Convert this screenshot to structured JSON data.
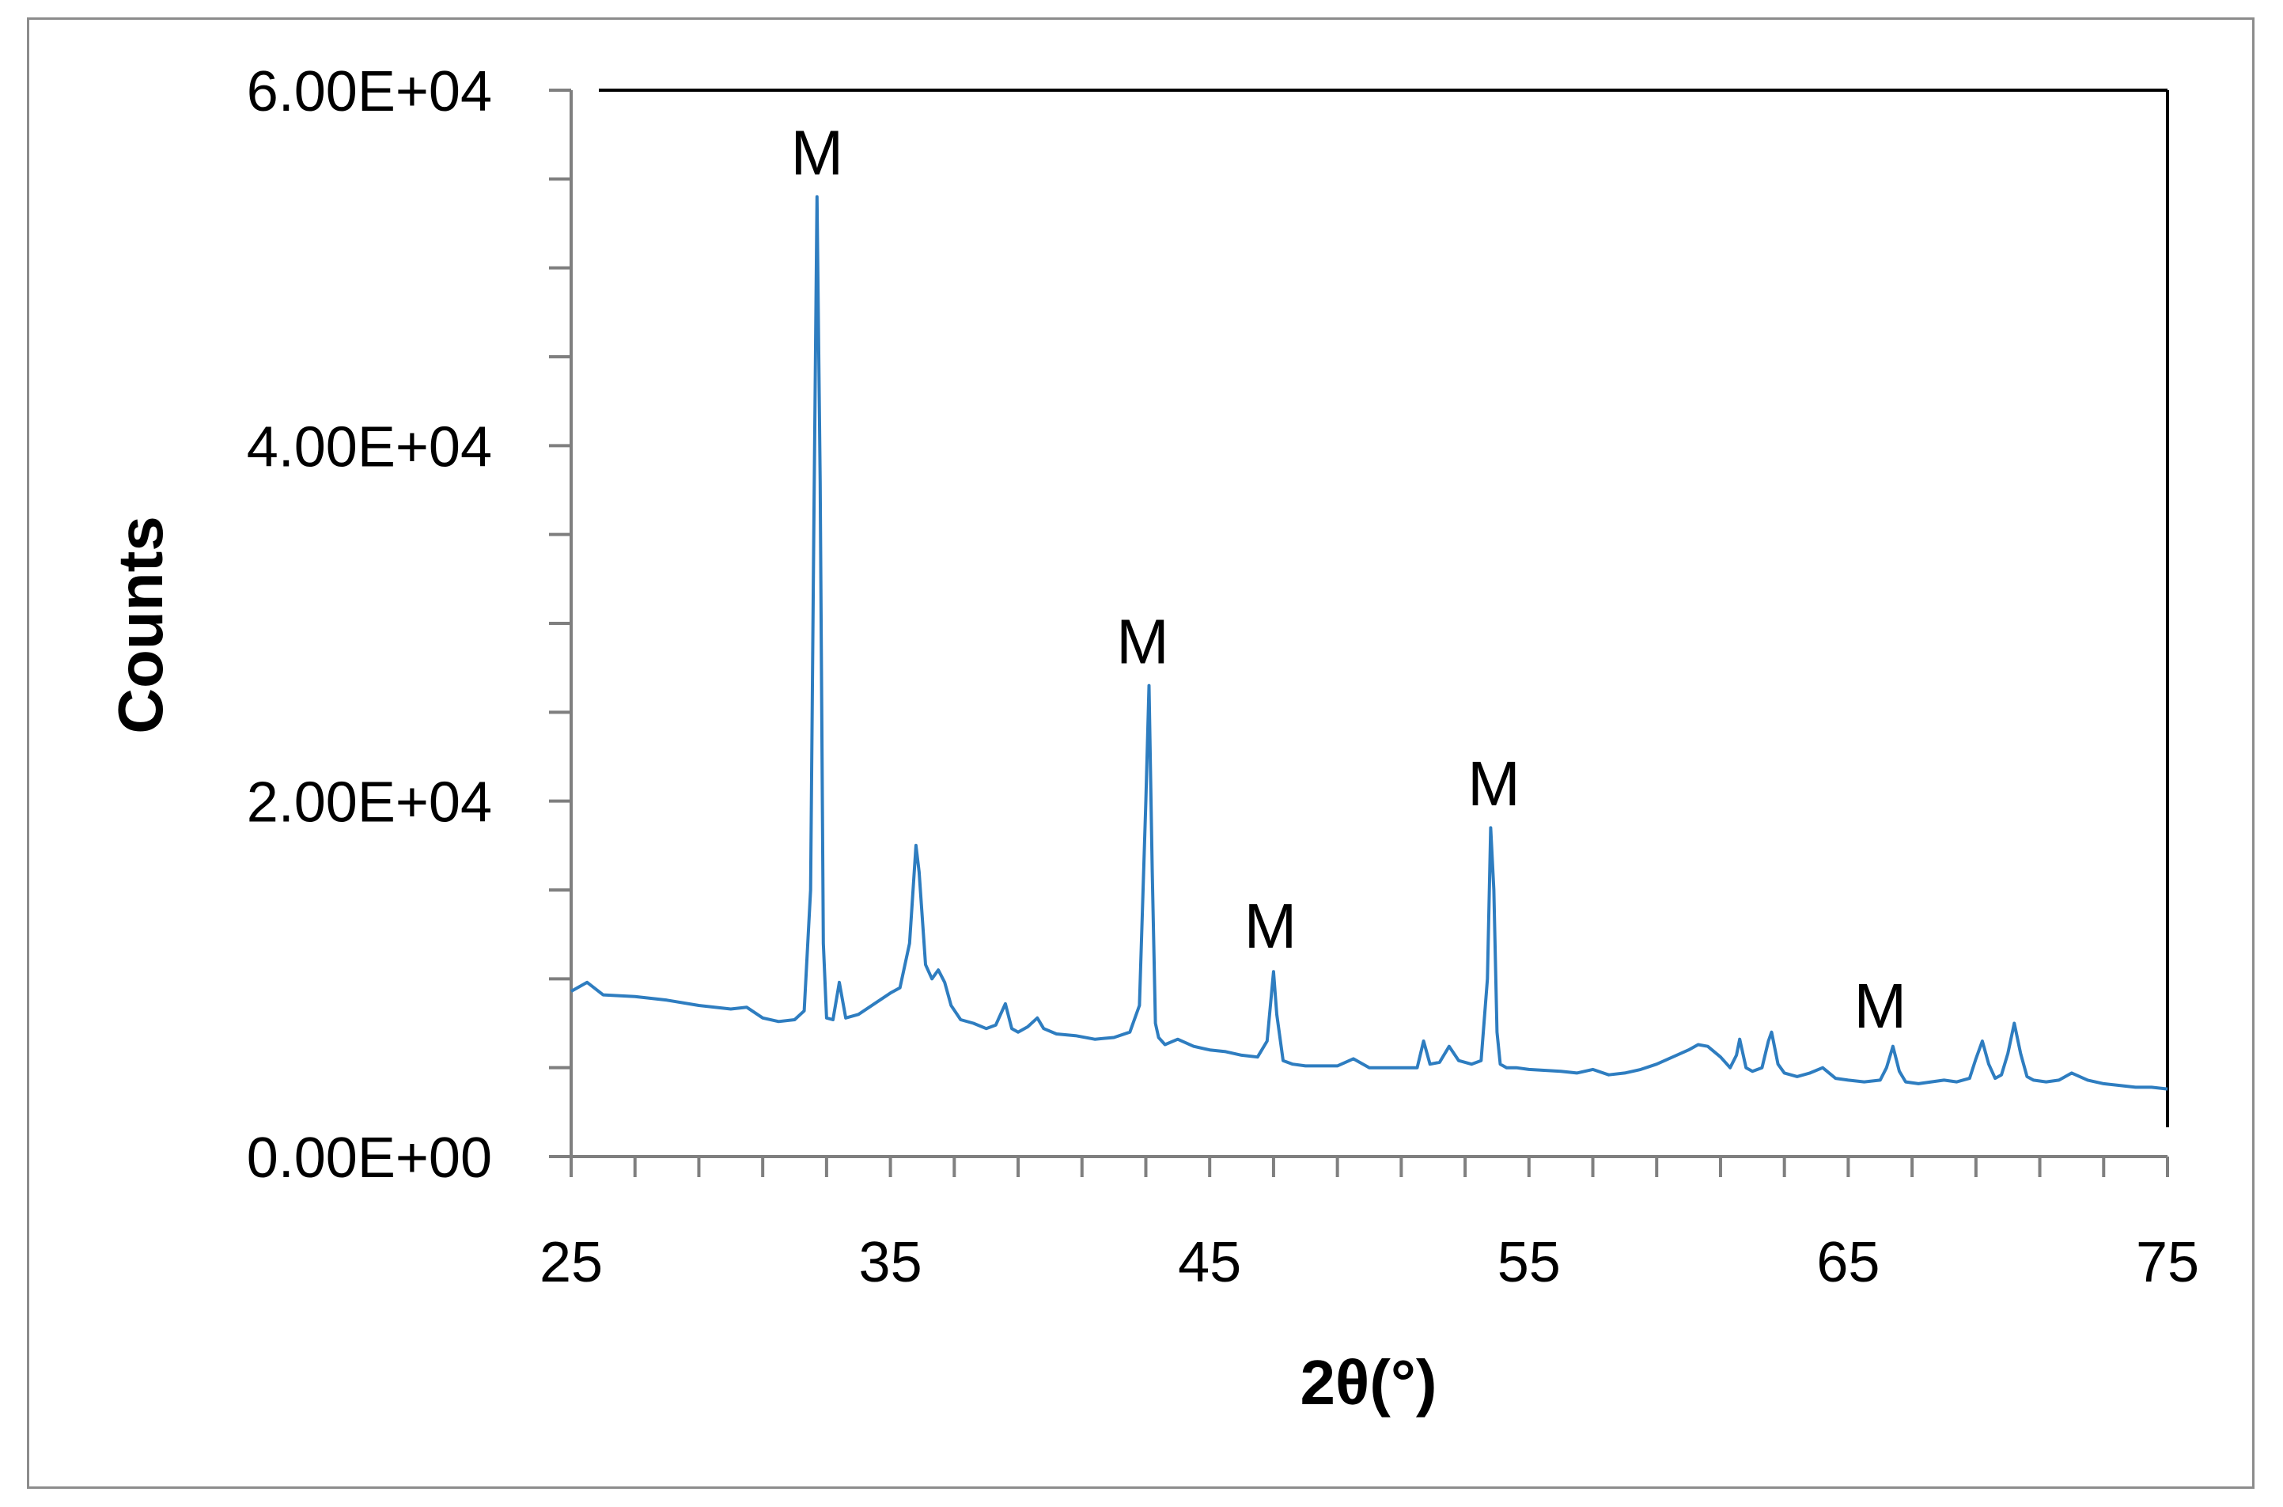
{
  "chart_data": {
    "type": "line",
    "title": "",
    "xlabel": "2θ(°)",
    "ylabel": "Counts",
    "xlim": [
      25,
      75
    ],
    "ylim": [
      0,
      60000
    ],
    "x_ticks": [
      "25",
      "35",
      "45",
      "55",
      "65",
      "75"
    ],
    "x_tick_values": [
      25,
      35,
      45,
      55,
      65,
      75
    ],
    "y_ticks": [
      "0.00E+00",
      "2.00E+04",
      "4.00E+04",
      "6.00E+04"
    ],
    "y_tick_values": [
      0,
      20000,
      40000,
      60000
    ],
    "grid": false,
    "line_color": "#2e7dc0",
    "series": [
      {
        "x": [
          25.0,
          25.5,
          26.0,
          27.0,
          28.0,
          29.0,
          30.0,
          30.5,
          31.0,
          31.5,
          32.0,
          32.3,
          32.5,
          32.6,
          32.7,
          32.8,
          32.9,
          33.0,
          33.2,
          33.4,
          33.6,
          34.0,
          34.5,
          35.0,
          35.3,
          35.6,
          35.8,
          35.9,
          36.1,
          36.3,
          36.5,
          36.7,
          36.9,
          37.2,
          37.6,
          38.0,
          38.3,
          38.6,
          38.8,
          39.0,
          39.3,
          39.6,
          39.8,
          40.2,
          40.8,
          41.4,
          42.0,
          42.5,
          42.8,
          43.0,
          43.1,
          43.2,
          43.3,
          43.4,
          43.6,
          44.0,
          44.5,
          45.0,
          45.5,
          46.0,
          46.5,
          46.8,
          47.0,
          47.1,
          47.3,
          47.6,
          48.0,
          49.0,
          49.5,
          50.0,
          50.5,
          51.0,
          51.5,
          51.7,
          51.9,
          52.2,
          52.5,
          52.8,
          53.2,
          53.5,
          53.7,
          53.8,
          53.9,
          54.0,
          54.1,
          54.3,
          54.6,
          55.0,
          56.0,
          56.5,
          57.0,
          57.5,
          58.0,
          58.5,
          59.0,
          59.5,
          60.0,
          60.3,
          60.6,
          61.0,
          61.3,
          61.5,
          61.6,
          61.8,
          62.0,
          62.3,
          62.5,
          62.6,
          62.8,
          63.0,
          63.4,
          63.8,
          64.2,
          64.6,
          65.0,
          65.5,
          66.0,
          66.2,
          66.4,
          66.6,
          66.8,
          67.2,
          67.6,
          68.0,
          68.4,
          68.8,
          69.0,
          69.2,
          69.4,
          69.6,
          69.8,
          70.0,
          70.2,
          70.4,
          70.6,
          70.8,
          71.2,
          71.6,
          72.0,
          72.5,
          73.0,
          73.5,
          74.0,
          74.5,
          75.0
        ],
        "y": [
          9300,
          9800,
          9100,
          9000,
          8800,
          8500,
          8300,
          8400,
          7800,
          7600,
          7700,
          8200,
          15000,
          35000,
          54000,
          38000,
          12000,
          7800,
          7700,
          9800,
          7800,
          8000,
          8600,
          9200,
          9500,
          12000,
          17500,
          16000,
          10800,
          10000,
          10500,
          9800,
          8500,
          7700,
          7500,
          7200,
          7400,
          8600,
          7200,
          7000,
          7300,
          7800,
          7200,
          6900,
          6800,
          6600,
          6700,
          7000,
          8500,
          20000,
          26500,
          16000,
          7500,
          6700,
          6300,
          6600,
          6200,
          6000,
          5900,
          5700,
          5600,
          6500,
          10400,
          8000,
          5400,
          5200,
          5100,
          5100,
          5500,
          5000,
          5000,
          5000,
          5000,
          6500,
          5200,
          5300,
          6200,
          5400,
          5200,
          5400,
          10000,
          18500,
          15000,
          7000,
          5200,
          5000,
          5000,
          4900,
          4800,
          4700,
          4900,
          4600,
          4700,
          4900,
          5200,
          5600,
          6000,
          6300,
          6200,
          5600,
          5000,
          5700,
          6600,
          5000,
          4800,
          5000,
          6500,
          7000,
          5200,
          4700,
          4500,
          4700,
          5000,
          4400,
          4300,
          4200,
          4300,
          5000,
          6200,
          4800,
          4200,
          4100,
          4200,
          4300,
          4200,
          4400,
          5500,
          6500,
          5200,
          4400,
          4600,
          5800,
          7500,
          5800,
          4500,
          4300,
          4200,
          4300,
          4700,
          4300,
          4100,
          4000,
          3900,
          3900,
          3800
        ]
      }
    ],
    "annotations": [
      {
        "text": "M",
        "x": 32.7,
        "y": 56500
      },
      {
        "text": "M",
        "x": 42.9,
        "y": 29000
      },
      {
        "text": "M",
        "x": 46.9,
        "y": 13000
      },
      {
        "text": "M",
        "x": 53.9,
        "y": 21000
      },
      {
        "text": "M",
        "x": 66.0,
        "y": 8500
      }
    ]
  }
}
